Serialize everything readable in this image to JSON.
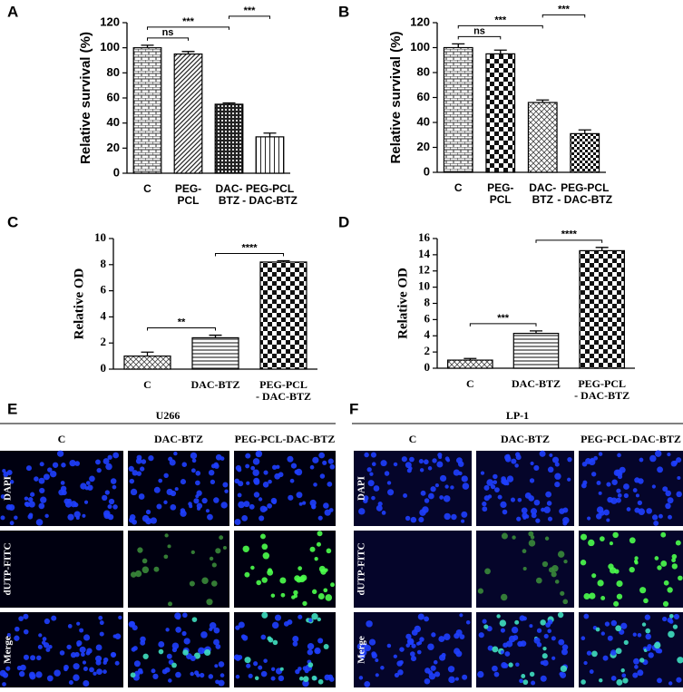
{
  "chart_data": [
    {
      "type": "bar",
      "letter": "A",
      "ylabel": "Relative survival (%)",
      "categories": [
        [
          "C"
        ],
        [
          "PEG-",
          "PCL"
        ],
        [
          "DAC-",
          "BTZ"
        ],
        [
          "PEG-PCL",
          "- DAC-BTZ"
        ]
      ],
      "values": [
        100,
        95,
        55,
        29
      ],
      "errors": [
        2,
        2,
        1,
        3
      ],
      "ylim": [
        0,
        120
      ],
      "yticks": [
        0,
        20,
        40,
        60,
        80,
        100,
        120
      ],
      "annotations": [
        {
          "text": "ns",
          "from": 0,
          "to": 1
        },
        {
          "text": "***",
          "from": 0,
          "to": 2
        },
        {
          "text": "***",
          "from": 2,
          "to": 3
        }
      ]
    },
    {
      "type": "bar",
      "letter": "B",
      "ylabel": "Relative survival (%)",
      "categories": [
        [
          "C"
        ],
        [
          "PEG-",
          "PCL"
        ],
        [
          "DAC-",
          "BTZ"
        ],
        [
          "PEG-PCL",
          "- DAC-BTZ"
        ]
      ],
      "values": [
        100,
        95,
        56,
        31
      ],
      "errors": [
        3,
        3,
        2,
        3
      ],
      "ylim": [
        0,
        120
      ],
      "yticks": [
        0,
        20,
        40,
        60,
        80,
        100,
        120
      ],
      "annotations": [
        {
          "text": "ns",
          "from": 0,
          "to": 1
        },
        {
          "text": "***",
          "from": 0,
          "to": 2
        },
        {
          "text": "***",
          "from": 2,
          "to": 3
        }
      ]
    },
    {
      "type": "bar",
      "letter": "C",
      "ylabel": "Relative  OD",
      "categories": [
        [
          "C"
        ],
        [
          "DAC-BTZ"
        ],
        [
          "PEG-PCL",
          "- DAC-BTZ"
        ]
      ],
      "values": [
        1.0,
        2.4,
        8.2
      ],
      "errors": [
        0.3,
        0.2,
        0.1
      ],
      "ylim": [
        0,
        10
      ],
      "yticks": [
        0,
        2,
        4,
        6,
        8,
        10
      ],
      "annotations": [
        {
          "text": "**",
          "from": 0,
          "to": 1
        },
        {
          "text": "****",
          "from": 1,
          "to": 2
        }
      ]
    },
    {
      "type": "bar",
      "letter": "D",
      "ylabel": "Relative  OD",
      "categories": [
        [
          "C"
        ],
        [
          "DAC-BTZ"
        ],
        [
          "PEG-PCL",
          "- DAC-BTZ"
        ]
      ],
      "values": [
        1.0,
        4.3,
        14.5
      ],
      "errors": [
        0.2,
        0.3,
        0.4
      ],
      "ylim": [
        0,
        16
      ],
      "yticks": [
        0,
        2,
        4,
        6,
        8,
        10,
        12,
        14,
        16
      ],
      "annotations": [
        {
          "text": "***",
          "from": 0,
          "to": 1
        },
        {
          "text": "****",
          "from": 1,
          "to": 2
        }
      ]
    }
  ],
  "image_panels": [
    {
      "letter": "E",
      "cell_line": "U266",
      "columns": [
        "C",
        "DAC-BTZ",
        "PEG-PCL-DAC-BTZ"
      ],
      "rows": [
        "DAPI",
        "dUTP-FITC",
        "Merge"
      ]
    },
    {
      "letter": "F",
      "cell_line": "LP-1",
      "columns": [
        "C",
        "DAC-BTZ",
        "PEG-PCL-DAC-BTZ"
      ],
      "rows": [
        "DAPI",
        "dUTP-FITC",
        "Merge"
      ]
    }
  ]
}
